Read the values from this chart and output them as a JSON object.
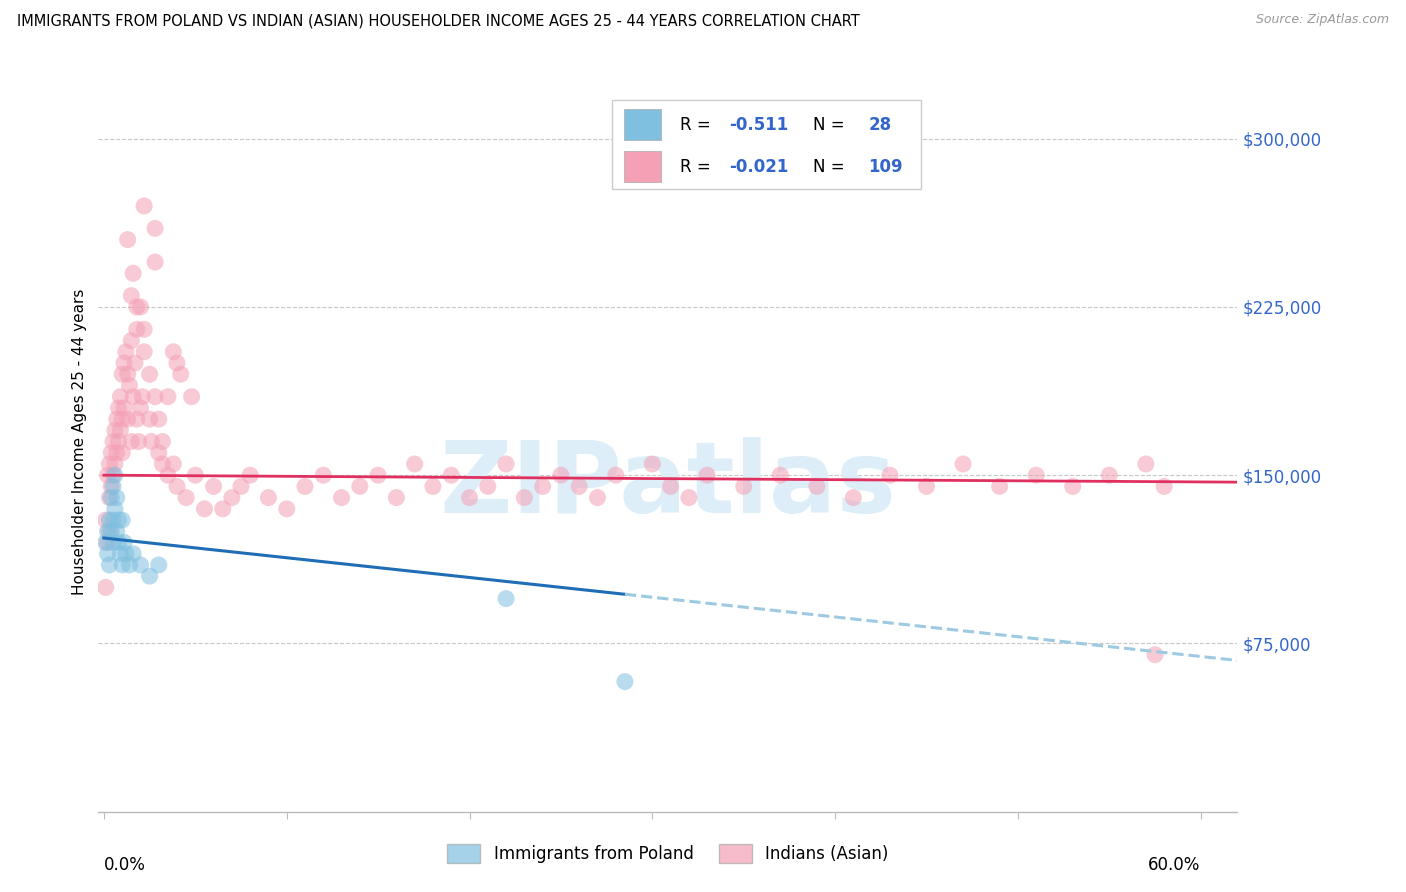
{
  "title": "IMMIGRANTS FROM POLAND VS INDIAN (ASIAN) HOUSEHOLDER INCOME AGES 25 - 44 YEARS CORRELATION CHART",
  "source": "Source: ZipAtlas.com",
  "ylabel": "Householder Income Ages 25 - 44 years",
  "ytick_labels": [
    "$75,000",
    "$150,000",
    "$225,000",
    "$300,000"
  ],
  "ytick_values": [
    75000,
    150000,
    225000,
    300000
  ],
  "ylim": [
    0,
    330000
  ],
  "xlim": [
    -0.003,
    0.62
  ],
  "poland_color": "#7fbfdf",
  "indian_color": "#f4a0b5",
  "poland_line_color": "#1f6eb5",
  "indian_line_color": "#e03060",
  "dashed_line_color": "#9ecae1",
  "watermark_text": "ZIPatlas",
  "legend_text_color": "#3366cc",
  "poland_label": "Immigrants from Poland",
  "indian_label": "Indians (Asian)",
  "poland_x": [
    0.001,
    0.002,
    0.002,
    0.003,
    0.003,
    0.004,
    0.004,
    0.005,
    0.005,
    0.005,
    0.006,
    0.006,
    0.007,
    0.007,
    0.008,
    0.008,
    0.009,
    0.01,
    0.01,
    0.011,
    0.012,
    0.014,
    0.016,
    0.02,
    0.025,
    0.03,
    0.285,
    0.22
  ],
  "poland_y": [
    120000,
    125000,
    115000,
    130000,
    110000,
    125000,
    140000,
    130000,
    120000,
    145000,
    135000,
    150000,
    125000,
    140000,
    130000,
    120000,
    115000,
    130000,
    110000,
    120000,
    115000,
    110000,
    115000,
    110000,
    105000,
    110000,
    58000,
    95000
  ],
  "indian_x": [
    0.001,
    0.001,
    0.002,
    0.002,
    0.003,
    0.003,
    0.003,
    0.004,
    0.004,
    0.005,
    0.005,
    0.006,
    0.006,
    0.007,
    0.007,
    0.008,
    0.008,
    0.009,
    0.009,
    0.01,
    0.01,
    0.01,
    0.011,
    0.011,
    0.012,
    0.013,
    0.013,
    0.014,
    0.015,
    0.015,
    0.016,
    0.017,
    0.018,
    0.019,
    0.02,
    0.021,
    0.022,
    0.025,
    0.026,
    0.028,
    0.03,
    0.032,
    0.035,
    0.038,
    0.04,
    0.045,
    0.05,
    0.055,
    0.06,
    0.065,
    0.07,
    0.075,
    0.08,
    0.09,
    0.1,
    0.11,
    0.12,
    0.13,
    0.14,
    0.15,
    0.16,
    0.17,
    0.18,
    0.19,
    0.2,
    0.21,
    0.22,
    0.23,
    0.24,
    0.25,
    0.26,
    0.27,
    0.28,
    0.3,
    0.31,
    0.32,
    0.33,
    0.35,
    0.37,
    0.39,
    0.41,
    0.43,
    0.45,
    0.47,
    0.49,
    0.51,
    0.53,
    0.55,
    0.57,
    0.58,
    0.028,
    0.032,
    0.038,
    0.042,
    0.048,
    0.022,
    0.025,
    0.03,
    0.035,
    0.04,
    0.016,
    0.018,
    0.02,
    0.022,
    0.028,
    0.013,
    0.015,
    0.018,
    0.575
  ],
  "indian_y": [
    130000,
    100000,
    150000,
    120000,
    155000,
    140000,
    125000,
    160000,
    145000,
    165000,
    150000,
    170000,
    155000,
    175000,
    160000,
    180000,
    165000,
    185000,
    170000,
    195000,
    175000,
    160000,
    200000,
    180000,
    205000,
    195000,
    175000,
    190000,
    210000,
    165000,
    185000,
    200000,
    175000,
    165000,
    180000,
    185000,
    270000,
    175000,
    165000,
    185000,
    160000,
    155000,
    150000,
    155000,
    145000,
    140000,
    150000,
    135000,
    145000,
    135000,
    140000,
    145000,
    150000,
    140000,
    135000,
    145000,
    150000,
    140000,
    145000,
    150000,
    140000,
    155000,
    145000,
    150000,
    140000,
    145000,
    155000,
    140000,
    145000,
    150000,
    145000,
    140000,
    150000,
    155000,
    145000,
    140000,
    150000,
    145000,
    150000,
    145000,
    140000,
    150000,
    145000,
    155000,
    145000,
    150000,
    145000,
    150000,
    155000,
    145000,
    260000,
    165000,
    205000,
    195000,
    185000,
    215000,
    195000,
    175000,
    185000,
    200000,
    240000,
    215000,
    225000,
    205000,
    245000,
    255000,
    230000,
    225000,
    70000
  ]
}
